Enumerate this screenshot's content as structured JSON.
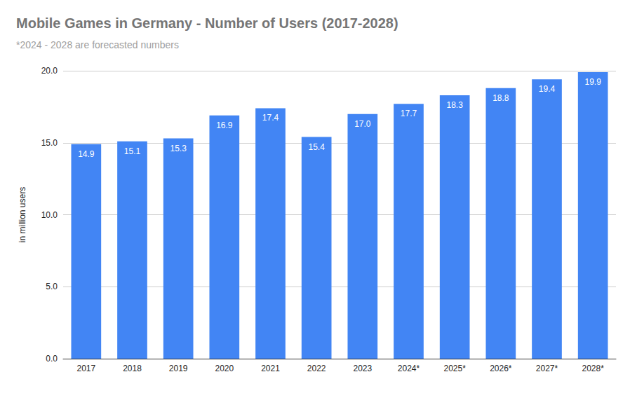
{
  "chart_data": {
    "type": "bar",
    "title": "Mobile Games in Germany - Number of Users (2017-2028)",
    "subtitle": "*2024 - 2028 are forecasted numbers",
    "y_label": "in million users",
    "categories": [
      "2017",
      "2018",
      "2019",
      "2020",
      "2021",
      "2022",
      "2023",
      "2024*",
      "2025*",
      "2026*",
      "2027*",
      "2028*"
    ],
    "values": [
      14.9,
      15.1,
      15.3,
      16.9,
      17.4,
      15.4,
      17.0,
      17.7,
      18.3,
      18.8,
      19.4,
      19.9
    ],
    "value_labels": [
      "14.9",
      "15.1",
      "15.3",
      "16.9",
      "17.4",
      "15.4",
      "17.0",
      "17.7",
      "18.3",
      "18.8",
      "19.4",
      "19.9"
    ],
    "color": "#4285f4",
    "ylim": [
      0,
      20
    ],
    "yticks": [
      {
        "value": 0,
        "label": "0.0"
      },
      {
        "value": 5,
        "label": "5.0"
      },
      {
        "value": 10,
        "label": "10.0"
      },
      {
        "value": 15,
        "label": "15.0"
      },
      {
        "value": 20,
        "label": "20.0"
      }
    ],
    "grid": true,
    "data_labels": true
  }
}
